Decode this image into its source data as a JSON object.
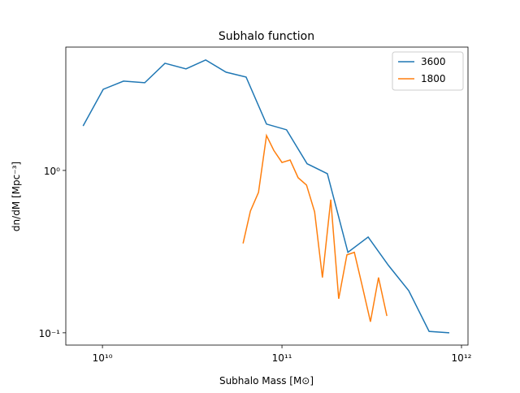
{
  "chart_data": {
    "type": "line",
    "title": "Subhalo function",
    "xlabel": "Subhalo Mass [M⊙]",
    "ylabel": "dn/dM [Mpc⁻³]",
    "xscale": "log",
    "yscale": "log",
    "xlim": [
      6250000000.0,
      1087000000000.0
    ],
    "ylim": [
      0.084,
      5.75
    ],
    "xticks": [
      {
        "value": 10000000000.0,
        "label": "10¹⁰"
      },
      {
        "value": 100000000000.0,
        "label": "10¹¹"
      },
      {
        "value": 1000000000000.0,
        "label": "10¹²"
      }
    ],
    "yticks": [
      {
        "value": 0.1,
        "label": "10⁻¹"
      },
      {
        "value": 1,
        "label": "10⁰"
      }
    ],
    "legend": "upper right",
    "series": [
      {
        "name": "3600",
        "color": "#1f77b4",
        "x": [
          7800000000.0,
          10100000000.0,
          13100000000.0,
          17200000000.0,
          22300000000.0,
          29200000000.0,
          37600000000.0,
          48800000000.0,
          63100000000.0,
          82000000000.0,
          106000000000.0,
          138000000000.0,
          179000000000.0,
          233000000000.0,
          302000000000.0,
          392000000000.0,
          508000000000.0,
          660000000000.0,
          855000000000.0
        ],
        "values": [
          1.88,
          3.16,
          3.55,
          3.47,
          4.57,
          4.22,
          4.79,
          4.03,
          3.76,
          1.93,
          1.78,
          1.1,
          0.955,
          0.313,
          0.389,
          0.26,
          0.182,
          0.102,
          0.1
        ]
      },
      {
        "name": "1800",
        "color": "#ff7f0e",
        "x": [
          60700000000.0,
          66700000000.0,
          74000000000.0,
          82000000000.0,
          90000000000.0,
          100000000000.0,
          111000000000.0,
          123000000000.0,
          137000000000.0,
          152000000000.0,
          168000000000.0,
          187000000000.0,
          207000000000.0,
          230000000000.0,
          253000000000.0,
          281000000000.0,
          311000000000.0,
          345000000000.0,
          384000000000.0
        ],
        "values": [
          0.355,
          0.562,
          0.733,
          1.64,
          1.33,
          1.12,
          1.16,
          0.902,
          0.813,
          0.556,
          0.219,
          0.661,
          0.162,
          0.302,
          0.313,
          0.191,
          0.117,
          0.219,
          0.127
        ]
      }
    ]
  }
}
